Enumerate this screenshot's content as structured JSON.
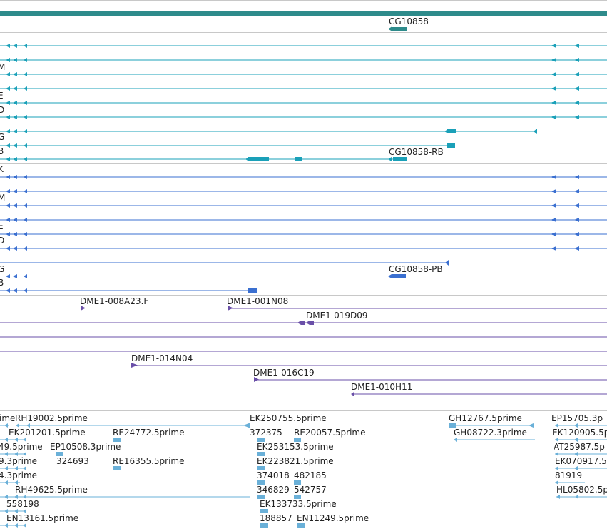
{
  "gene_track": {
    "gene_label": "CG10858",
    "colors": {
      "gene": "#2e8b8b",
      "transcript": "#1aa0b8",
      "protein": "#3a6fd0",
      "clone": "#6a4fa8",
      "est": "#6ab0d8",
      "divider": "#c8c8c8"
    }
  },
  "transcripts": {
    "left_labels": [
      "",
      "M",
      "",
      "E",
      "D",
      "",
      "G",
      "B"
    ],
    "feature_label": "CG10858-RB"
  },
  "proteins": {
    "left_labels": [
      "K",
      "M",
      "",
      "E",
      "D",
      "",
      "G",
      "B"
    ],
    "feature_label": "CG10858-PB"
  },
  "clones": {
    "labels": [
      "DME1-008A23.F",
      "DME1-001N08",
      "DME1-019D09",
      "DME1-014N04",
      "DME1-016C19",
      "DME1-010H11"
    ]
  },
  "ests": {
    "labels": [
      "ime",
      "RH19002.5prime",
      "EK250755.5prime",
      "GH12767.5prime",
      "EP15705.3p",
      "EK201201.5prime",
      "RE24772.5prime",
      "372375",
      "RE20057.5prime",
      "GH08722.3prime",
      "EK120905.5p",
      "49.5prime",
      "EP10508.3prime",
      "EK253153.5prime",
      "AT25987.5p",
      "9.3prime",
      "324693",
      "RE16355.5prime",
      "EK223821.5prime",
      "EK070917.5",
      "4.3prime",
      "374018",
      "482185",
      "81919",
      "RH49625.5prime",
      "346829",
      "542757",
      "HL05802.5p",
      "558198",
      "EK133733.5prime",
      "EN13161.5prime",
      "188857",
      "EN11249.5prime"
    ]
  }
}
